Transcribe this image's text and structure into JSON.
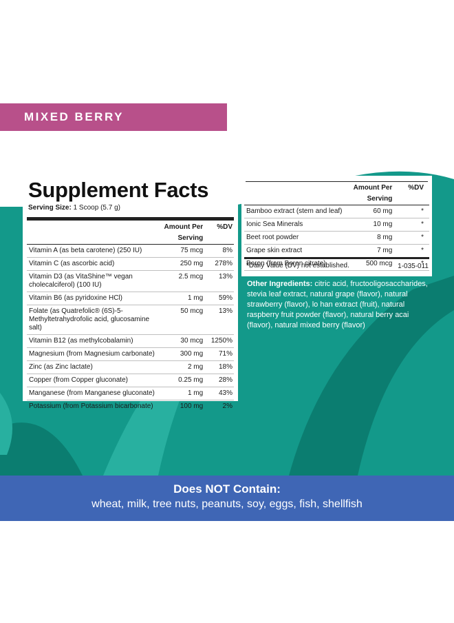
{
  "flavor": "MIXED BERRY",
  "supplement_facts": {
    "title": "Supplement Facts",
    "serving_size_label": "Serving Size:",
    "serving_size_value": "1 Scoop (5.7 g)",
    "header": {
      "amount": "Amount Per Serving",
      "dv": "%DV"
    },
    "rows": [
      {
        "name": "Vitamin A (as beta carotene) (250 IU)",
        "amount": "75 mcg",
        "dv": "8%"
      },
      {
        "name": "Vitamin C (as ascorbic acid)",
        "amount": "250 mg",
        "dv": "278%"
      },
      {
        "name": "Vitamin D3 (as VitaShine™ vegan cholecalciferol) (100 IU)",
        "amount": "2.5 mcg",
        "dv": "13%"
      },
      {
        "name": "Vitamin B6 (as pyridoxine HCl)",
        "amount": "1 mg",
        "dv": "59%"
      },
      {
        "name": "Folate (as Quatrefolic® (6S)-5-Methyltetrahydrofolic acid, glucosamine salt)",
        "amount": "50 mcg",
        "dv": "13%"
      },
      {
        "name": "Vitamin B12 (as methylcobalamin)",
        "amount": "30 mcg",
        "dv": "1250%"
      },
      {
        "name": "Magnesium (from Magnesium carbonate)",
        "amount": "300 mg",
        "dv": "71%"
      },
      {
        "name": "Zinc (as Zinc lactate)",
        "amount": "2 mg",
        "dv": "18%"
      },
      {
        "name": "Copper (from Copper gluconate)",
        "amount": "0.25 mg",
        "dv": "28%"
      },
      {
        "name": "Manganese (from Manganese gluconate)",
        "amount": "1 mg",
        "dv": "43%"
      },
      {
        "name": "Potassium (from Potassium bicarbonate)",
        "amount": "100 mg",
        "dv": "2%"
      }
    ],
    "continued_rows": [
      {
        "name": "Bamboo extract (stem and leaf)",
        "amount": "60 mg",
        "dv": "*"
      },
      {
        "name": "Ionic Sea Minerals",
        "amount": "10 mg",
        "dv": "*"
      },
      {
        "name": "Beet root powder",
        "amount": "8 mg",
        "dv": "*"
      },
      {
        "name": "Grape skin extract",
        "amount": "7 mg",
        "dv": "*"
      },
      {
        "name": "Boron (from Boron citrate)",
        "amount": "500 mcg",
        "dv": "*"
      }
    ],
    "footnote": "*Daily Value (DV) not established.",
    "product_code": "1-035-011"
  },
  "other_ingredients": {
    "label": "Other Ingredients:",
    "text": "citric acid, fructooligosaccharides, stevia leaf extract, natural grape (flavor), natural strawberry (flavor), lo han extract (fruit), natural raspberry fruit powder (flavor), natural berry acai (flavor), natural mixed berry (flavor)"
  },
  "does_not_contain": {
    "title": "Does NOT Contain:",
    "list": "wheat, milk, tree nuts, peanuts, soy, eggs, fish, shellfish"
  },
  "colors": {
    "teal": "#13998a",
    "dark_teal": "#0b7d70",
    "light_teal": "#28b0a0",
    "magenta": "#b8508a",
    "blue": "#3f66b5"
  }
}
